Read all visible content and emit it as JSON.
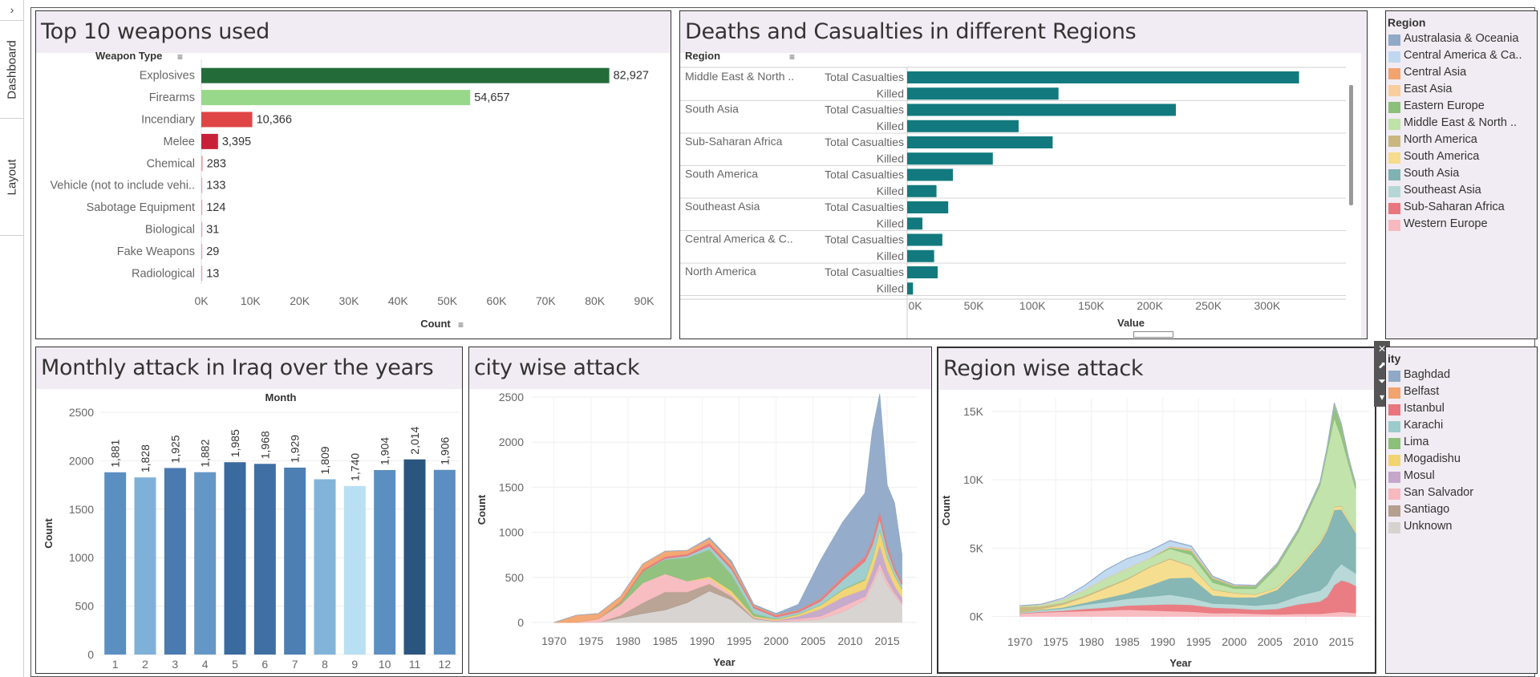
{
  "sidebar": {
    "toggle": "›",
    "tabs": [
      "Dashboard",
      "Layout"
    ]
  },
  "panels": {
    "weapons": {
      "title": "Top 10 weapons used",
      "header": "Weapon Type",
      "xlabel": "Count",
      "ticks": [
        "0K",
        "10K",
        "20K",
        "30K",
        "40K",
        "50K",
        "60K",
        "70K",
        "80K",
        "90K"
      ]
    },
    "regions": {
      "title": "Deaths and Casualties in different Regions",
      "header": "Region",
      "xlabel": "Value",
      "ticks": [
        "0K",
        "50K",
        "100K",
        "150K",
        "200K",
        "250K",
        "300K"
      ]
    },
    "iraq": {
      "title": "Monthly attack in Iraq over the years",
      "header": "Month",
      "ylabel": "Count"
    },
    "city": {
      "title": "city wise attack",
      "ylabel": "Count",
      "xlabel": "Year"
    },
    "regionwise": {
      "title": "Region wise attack",
      "ylabel": "Count",
      "xlabel": "Year"
    }
  },
  "legend_region": {
    "title": "Region",
    "items": [
      {
        "label": "Australasia & Oceania",
        "color": "#8fa9c7"
      },
      {
        "label": "Central America & Ca..",
        "color": "#bfd8ef"
      },
      {
        "label": "Central Asia",
        "color": "#f2a36e"
      },
      {
        "label": "East Asia",
        "color": "#f9ce9c"
      },
      {
        "label": "Eastern Europe",
        "color": "#8cbf79"
      },
      {
        "label": "Middle East & North ..",
        "color": "#bfe2a8"
      },
      {
        "label": "North America",
        "color": "#c8b77e"
      },
      {
        "label": "South America",
        "color": "#f6dc8b"
      },
      {
        "label": "South Asia",
        "color": "#7fb3b1"
      },
      {
        "label": "Southeast Asia",
        "color": "#b4d7d5"
      },
      {
        "label": "Sub-Saharan Africa",
        "color": "#e9767c"
      },
      {
        "label": "Western Europe",
        "color": "#f7b9be"
      }
    ]
  },
  "legend_city": {
    "title": "ity",
    "items": [
      {
        "label": "Baghdad",
        "color": "#8fa9c7"
      },
      {
        "label": "Belfast",
        "color": "#f2a36e"
      },
      {
        "label": "Istanbul",
        "color": "#e9767c"
      },
      {
        "label": "Karachi",
        "color": "#9ccbcc"
      },
      {
        "label": "Lima",
        "color": "#8cbf79"
      },
      {
        "label": "Mogadishu",
        "color": "#f1d36f"
      },
      {
        "label": "Mosul",
        "color": "#c4a7c9"
      },
      {
        "label": "San Salvador",
        "color": "#f7b9be"
      },
      {
        "label": "Santiago",
        "color": "#b59f8f"
      },
      {
        "label": "Unknown",
        "color": "#d6d2cf"
      }
    ]
  },
  "toolbar": {
    "close_icon": "✕",
    "popout_icon": "⬈",
    "filter_icon": "⏷",
    "more_icon": "▾"
  },
  "chart_data": [
    {
      "type": "bar",
      "title": "Top 10 weapons used",
      "categories": [
        "Explosives",
        "Firearms",
        "Incendiary",
        "Melee",
        "Chemical",
        "Vehicle (not to include vehi..",
        "Sabotage Equipment",
        "Biological",
        "Fake Weapons",
        "Radiological"
      ],
      "values": [
        82927,
        54657,
        10366,
        3395,
        283,
        133,
        124,
        31,
        29,
        13
      ],
      "labels": [
        "82,927",
        "54,657",
        "10,366",
        "3,395",
        "283",
        "133",
        "124",
        "31",
        "29",
        "13"
      ],
      "colors": [
        "#236c3a",
        "#98d88a",
        "#e04545",
        "#c9203a",
        "#f0a0a6",
        "#f0a0a6",
        "#f0a0a6",
        "#f0a0a6",
        "#f0a0a6",
        "#f0a0a6"
      ],
      "xlabel": "Count",
      "xlim": [
        0,
        90000
      ]
    },
    {
      "type": "bar",
      "title": "Deaths and Casualties in different Regions",
      "categories": [
        "Middle East & North ..",
        "South Asia",
        "Sub-Saharan Africa",
        "South America",
        "Southeast Asia",
        "Central America & C..",
        "North America"
      ],
      "measures": [
        "Total Casualties",
        "Killed"
      ],
      "series": [
        {
          "name": "Total Casualties",
          "values": [
            334000,
            229000,
            124000,
            39000,
            35000,
            30000,
            26000
          ]
        },
        {
          "name": "Killed",
          "values": [
            129000,
            95000,
            73000,
            25000,
            13000,
            23000,
            5000
          ]
        }
      ],
      "color": "#127a7e",
      "xlabel": "Value",
      "xlim": [
        0,
        350000
      ]
    },
    {
      "type": "bar",
      "title": "Monthly attack in Iraq over the years",
      "categories": [
        "1",
        "2",
        "3",
        "4",
        "5",
        "6",
        "7",
        "8",
        "9",
        "10",
        "11",
        "12"
      ],
      "values": [
        1881,
        1828,
        1925,
        1882,
        1985,
        1968,
        1929,
        1809,
        1740,
        1904,
        2014,
        1906
      ],
      "labels": [
        "1,881",
        "1,828",
        "1,925",
        "1,882",
        "1,985",
        "1,968",
        "1,929",
        "1,809",
        "1,740",
        "1,904",
        "2,014",
        "1,906"
      ],
      "colors": [
        "#5b8fc1",
        "#7fb0d8",
        "#4a7ab0",
        "#6497c6",
        "#3a6a9e",
        "#3f6fa3",
        "#4d7fb3",
        "#82b4da",
        "#b9e0f2",
        "#5b8fc1",
        "#2a557f",
        "#5b8fc1"
      ],
      "ylabel": "Count",
      "ylim": [
        0,
        2500
      ],
      "yticks": [
        0,
        500,
        1000,
        1500,
        2000,
        2500
      ]
    },
    {
      "type": "area",
      "title": "city wise attack",
      "x": [
        1970,
        1973,
        1976,
        1979,
        1982,
        1985,
        1988,
        1991,
        1994,
        1997,
        2000,
        2003,
        2006,
        2009,
        2012,
        2013,
        2014,
        2015,
        2016,
        2017
      ],
      "series": [
        {
          "name": "Unknown",
          "color": "#d6d2cf",
          "values": [
            0,
            0,
            0,
            50,
            100,
            140,
            220,
            350,
            250,
            40,
            10,
            20,
            40,
            120,
            250,
            420,
            600,
            420,
            300,
            200
          ]
        },
        {
          "name": "Santiago",
          "color": "#b59f8f",
          "values": [
            0,
            0,
            0,
            30,
            120,
            200,
            120,
            80,
            40,
            10,
            5,
            0,
            0,
            0,
            0,
            0,
            0,
            0,
            0,
            0
          ]
        },
        {
          "name": "San Salvador",
          "color": "#f7b9be",
          "values": [
            0,
            0,
            40,
            120,
            220,
            200,
            120,
            60,
            20,
            10,
            10,
            20,
            30,
            60,
            40,
            40,
            60,
            50,
            30,
            20
          ]
        },
        {
          "name": "Mosul",
          "color": "#c4a7c9",
          "values": [
            0,
            0,
            0,
            0,
            0,
            0,
            0,
            0,
            0,
            0,
            0,
            30,
            80,
            100,
            80,
            120,
            200,
            120,
            80,
            60
          ]
        },
        {
          "name": "Mogadishu",
          "color": "#f1d36f",
          "values": [
            0,
            0,
            0,
            0,
            0,
            0,
            0,
            20,
            40,
            10,
            10,
            20,
            40,
            80,
            100,
            120,
            160,
            130,
            110,
            90
          ]
        },
        {
          "name": "Lima",
          "color": "#8cbf79",
          "values": [
            0,
            0,
            0,
            20,
            130,
            160,
            260,
            300,
            180,
            30,
            5,
            5,
            5,
            10,
            10,
            10,
            10,
            10,
            10,
            10
          ]
        },
        {
          "name": "Karachi",
          "color": "#9ccbcc",
          "values": [
            0,
            0,
            0,
            0,
            0,
            10,
            20,
            40,
            60,
            60,
            20,
            20,
            40,
            100,
            200,
            150,
            120,
            80,
            50,
            40
          ]
        },
        {
          "name": "Istanbul",
          "color": "#e9767c",
          "values": [
            0,
            0,
            0,
            10,
            20,
            20,
            20,
            30,
            30,
            20,
            20,
            20,
            30,
            40,
            50,
            60,
            80,
            60,
            40,
            30
          ]
        },
        {
          "name": "Belfast",
          "color": "#f2a36e",
          "values": [
            0,
            80,
            60,
            60,
            60,
            60,
            40,
            50,
            40,
            10,
            10,
            5,
            5,
            5,
            5,
            5,
            5,
            5,
            5,
            5
          ]
        },
        {
          "name": "Baghdad",
          "color": "#8fa9c7",
          "values": [
            0,
            0,
            0,
            0,
            0,
            0,
            0,
            10,
            20,
            10,
            10,
            60,
            420,
            600,
            700,
            1200,
            1300,
            650,
            700,
            300
          ]
        }
      ],
      "xlabel": "Year",
      "ylabel": "Count",
      "ylim": [
        0,
        2500
      ],
      "xticks": [
        1970,
        1975,
        1980,
        1985,
        1990,
        1995,
        2000,
        2005,
        2010,
        2015
      ],
      "yticks": [
        0,
        500,
        1000,
        1500,
        2000,
        2500
      ]
    },
    {
      "type": "area",
      "title": "Region wise attack",
      "x": [
        1970,
        1973,
        1976,
        1979,
        1982,
        1985,
        1988,
        1991,
        1994,
        1997,
        2000,
        2003,
        2006,
        2009,
        2012,
        2013,
        2014,
        2015,
        2016,
        2017
      ],
      "series": [
        {
          "name": "Western Europe",
          "color": "#f7b9be",
          "values": [
            200,
            300,
            350,
            400,
            450,
            500,
            450,
            400,
            350,
            250,
            250,
            200,
            150,
            200,
            200,
            250,
            300,
            350,
            300,
            250
          ]
        },
        {
          "name": "Sub-Saharan Africa",
          "color": "#e9767c",
          "values": [
            20,
            50,
            80,
            150,
            200,
            300,
            400,
            500,
            500,
            400,
            350,
            300,
            400,
            700,
            900,
            1200,
            2000,
            2300,
            2200,
            2000
          ]
        },
        {
          "name": "Southeast Asia",
          "color": "#b4d7d5",
          "values": [
            50,
            100,
            150,
            300,
            400,
            500,
            600,
            700,
            500,
            300,
            300,
            300,
            400,
            600,
            800,
            900,
            1000,
            1200,
            1000,
            900
          ]
        },
        {
          "name": "South Asia",
          "color": "#7fb3b1",
          "values": [
            20,
            50,
            80,
            150,
            300,
            400,
            800,
            1200,
            1500,
            600,
            500,
            600,
            1000,
            2000,
            3500,
            4000,
            4500,
            4000,
            3500,
            3000
          ]
        },
        {
          "name": "South America",
          "color": "#f6dc8b",
          "values": [
            20,
            50,
            200,
            400,
            700,
            1000,
            1300,
            1400,
            800,
            400,
            300,
            200,
            150,
            150,
            150,
            150,
            200,
            200,
            150,
            150
          ]
        },
        {
          "name": "North America",
          "color": "#c8b77e",
          "values": [
            400,
            200,
            150,
            100,
            100,
            80,
            60,
            60,
            60,
            40,
            40,
            30,
            30,
            30,
            30,
            30,
            40,
            50,
            40,
            40
          ]
        },
        {
          "name": "Middle East & North ..",
          "color": "#bfe2a8",
          "values": [
            50,
            100,
            200,
            400,
            600,
            700,
            600,
            700,
            800,
            500,
            300,
            400,
            1500,
            2500,
            4000,
            5500,
            6500,
            5000,
            4000,
            3000
          ]
        },
        {
          "name": "Eastern Europe",
          "color": "#8cbf79",
          "values": [
            0,
            0,
            0,
            0,
            0,
            0,
            0,
            100,
            300,
            300,
            200,
            200,
            200,
            200,
            200,
            300,
            1000,
            900,
            400,
            300
          ]
        },
        {
          "name": "East Asia",
          "color": "#f9ce9c",
          "values": [
            20,
            30,
            40,
            40,
            40,
            40,
            40,
            50,
            60,
            40,
            30,
            20,
            20,
            20,
            30,
            40,
            50,
            40,
            30,
            30
          ]
        },
        {
          "name": "Central Asia",
          "color": "#f2a36e",
          "values": [
            0,
            0,
            0,
            0,
            0,
            0,
            0,
            20,
            60,
            40,
            20,
            10,
            10,
            10,
            10,
            10,
            10,
            10,
            10,
            10
          ]
        },
        {
          "name": "Central America & Ca..",
          "color": "#bfd8ef",
          "values": [
            0,
            20,
            80,
            300,
            600,
            700,
            500,
            400,
            200,
            50,
            20,
            10,
            10,
            10,
            10,
            10,
            10,
            10,
            10,
            10
          ]
        },
        {
          "name": "Australasia & Oceania",
          "color": "#8fa9c7",
          "values": [
            10,
            10,
            20,
            20,
            20,
            20,
            30,
            30,
            30,
            30,
            20,
            20,
            20,
            20,
            30,
            30,
            30,
            30,
            30,
            30
          ]
        }
      ],
      "xlabel": "Year",
      "ylabel": "Count",
      "ylim": [
        -500,
        16000
      ],
      "xticks": [
        1970,
        1975,
        1980,
        1985,
        1990,
        1995,
        2000,
        2005,
        2010,
        2015
      ],
      "ytick_values": [
        0,
        5000,
        10000,
        15000
      ],
      "ytick_labels": [
        "0K",
        "5K",
        "10K",
        "15K"
      ]
    }
  ]
}
